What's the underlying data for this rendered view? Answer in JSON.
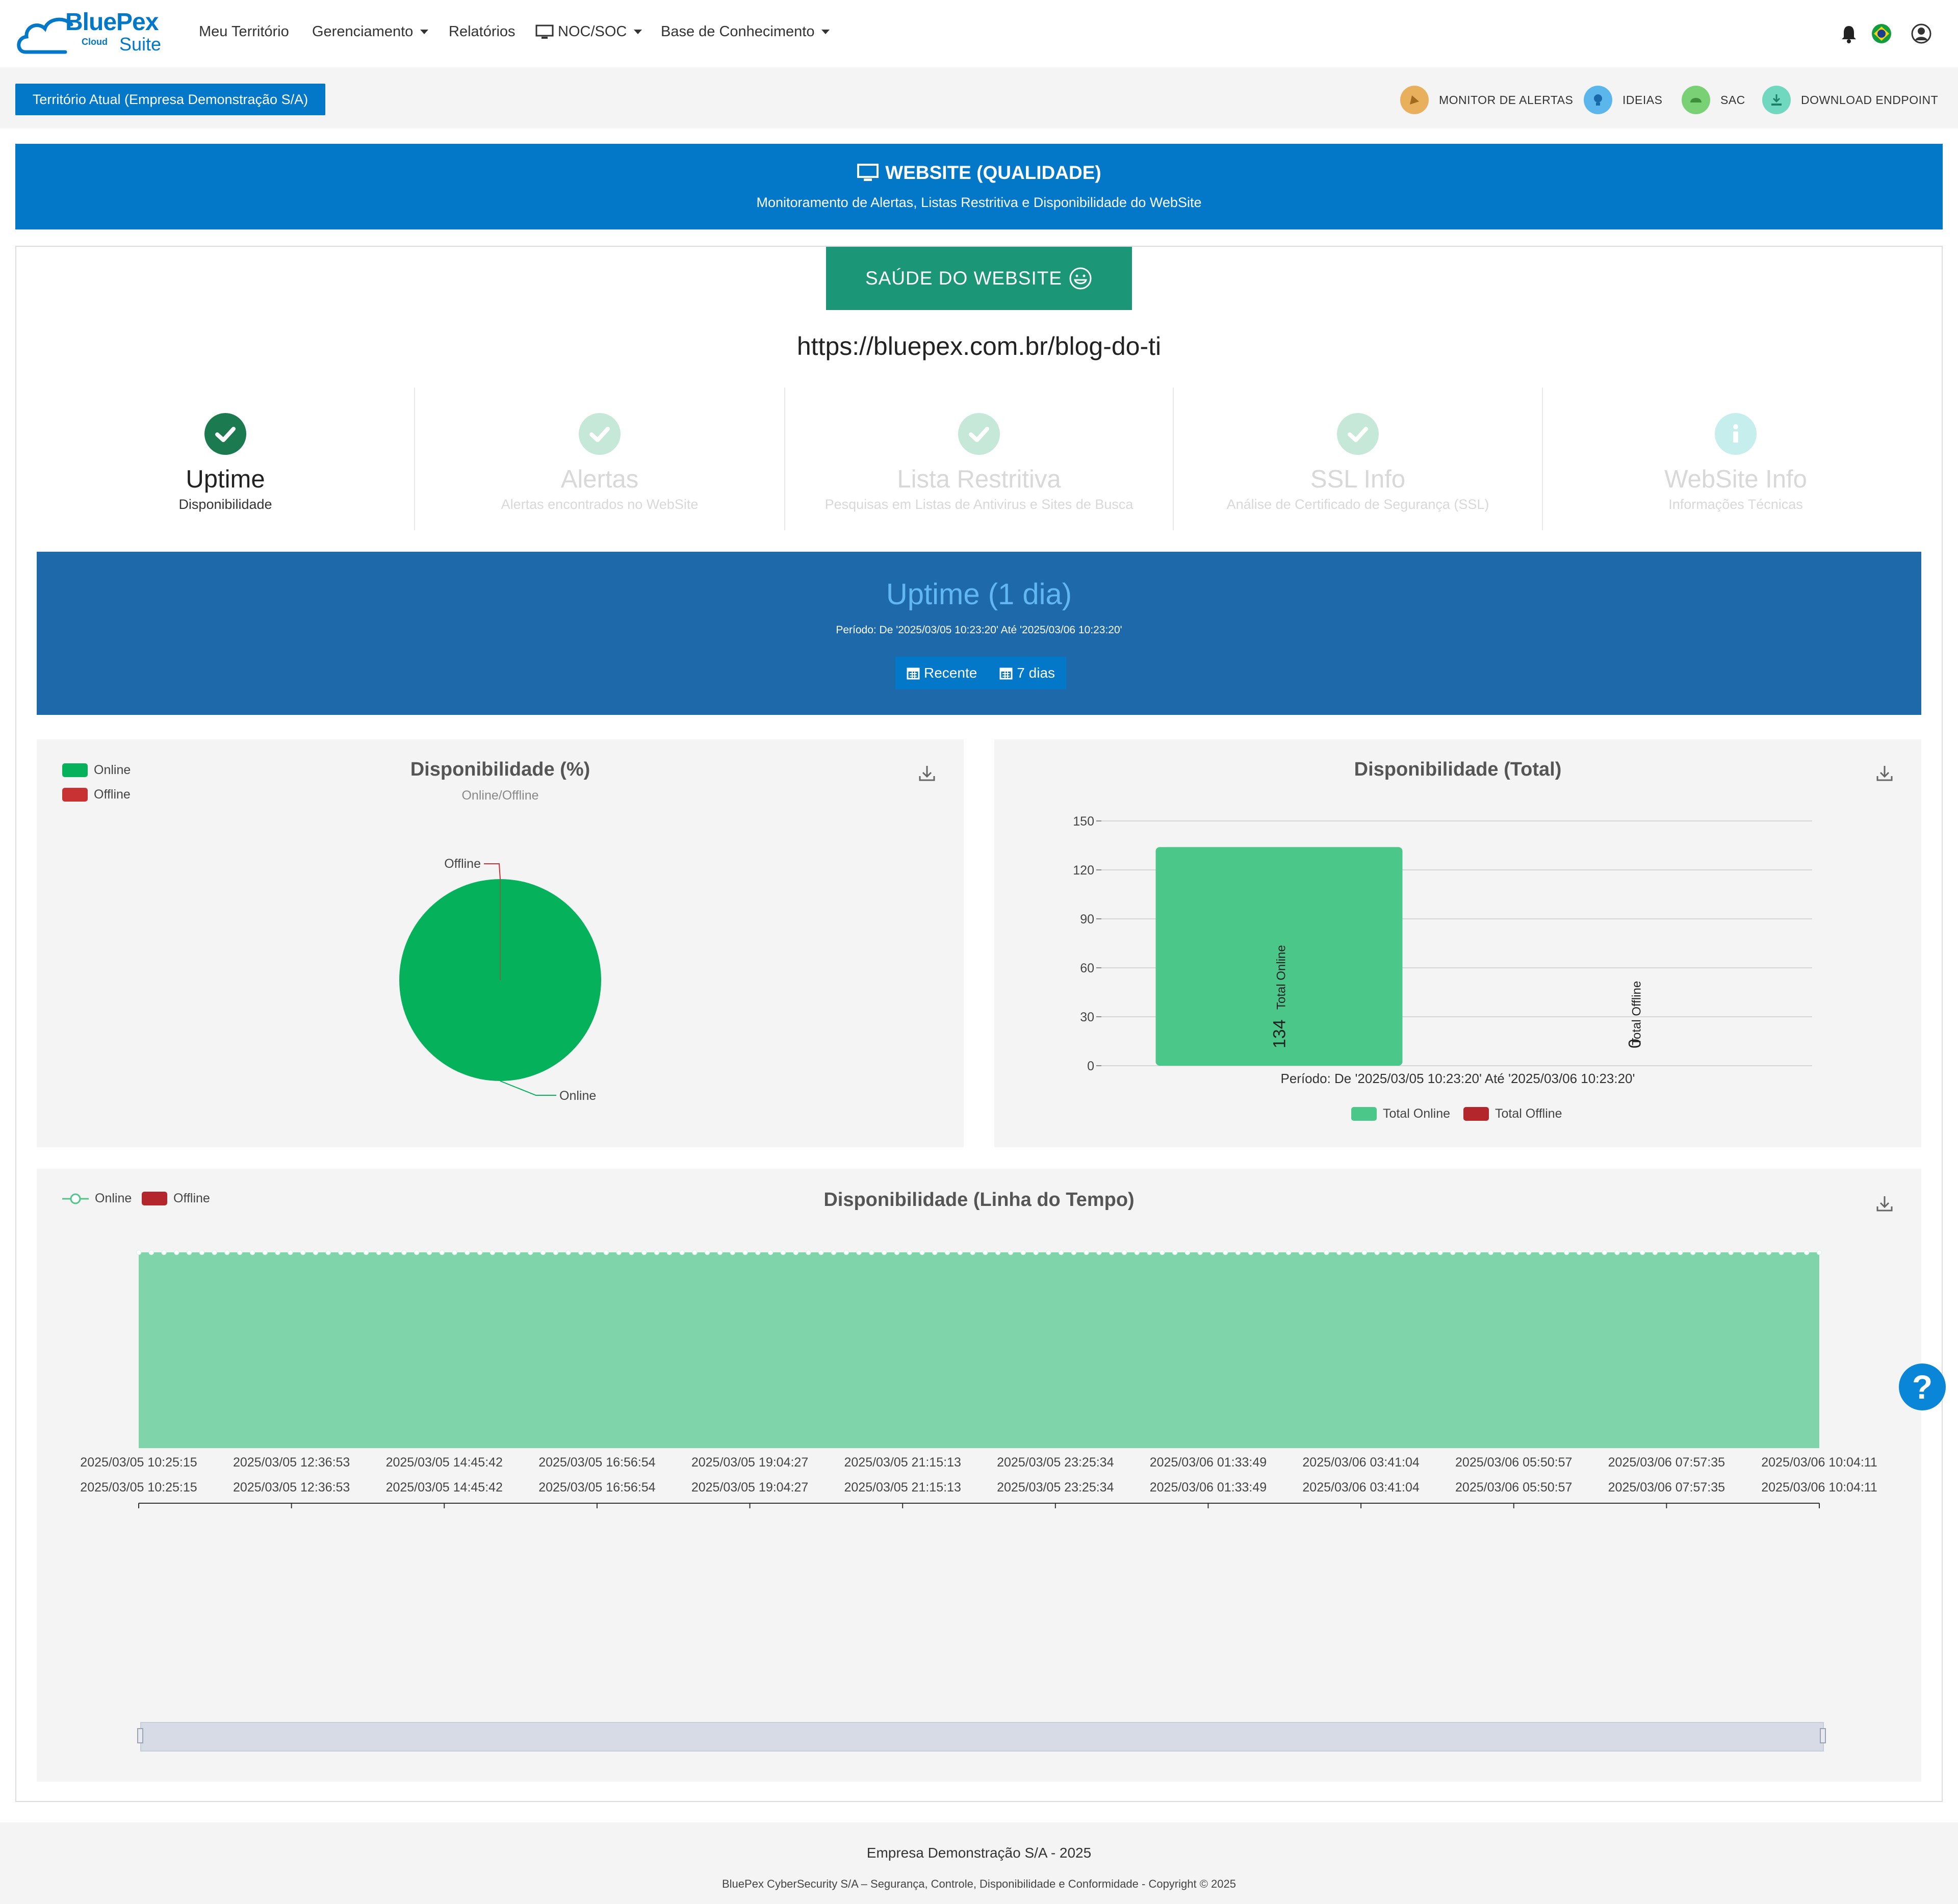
{
  "brand": {
    "name": "BluePex",
    "cloud": "Cloud",
    "suite": "Suite"
  },
  "nav": {
    "items": [
      {
        "label": "Meu Território"
      },
      {
        "label": "Gerenciamento"
      },
      {
        "label": "Relatórios"
      },
      {
        "label": "NOC/SOC"
      },
      {
        "label": "Base de Conhecimento"
      }
    ],
    "icons": [
      "bell-icon",
      "brazil-flag-icon",
      "user-icon"
    ]
  },
  "subbar": {
    "territory": "Território Atual (Empresa Demonstração S/A)",
    "links": [
      {
        "label": "MONITOR DE ALERTAS",
        "color": "#e8b05c"
      },
      {
        "label": "IDEIAS",
        "color": "#5bb6ec"
      },
      {
        "label": "SAC",
        "color": "#7ad175"
      },
      {
        "label": "DOWNLOAD ENDPOINT",
        "color": "#6fd8be"
      }
    ]
  },
  "header": {
    "title": "WEBSITE (QUALIDADE)",
    "subtitle": "Monitoramento de Alertas, Listas Restritiva e Disponibilidade do WebSite"
  },
  "health_button": "SAÚDE DO WEBSITE",
  "site_url": "https://bluepex.com.br/blog-do-ti",
  "steps": [
    {
      "title": "Uptime",
      "subtitle": "Disponibilidade",
      "active": true
    },
    {
      "title": "Alertas",
      "subtitle": "Alertas encontrados no WebSite",
      "active": false
    },
    {
      "title": "Lista Restritiva",
      "subtitle": "Pesquisas em Listas de Antivirus e Sites de Busca",
      "active": false
    },
    {
      "title": "SSL Info",
      "subtitle": "Análise de Certificado de Segurança (SSL)",
      "active": false
    },
    {
      "title": "WebSite Info",
      "subtitle": "Informações Técnicas",
      "active": false
    }
  ],
  "uptime": {
    "title": "Uptime (1 dia)",
    "period": "Período: De '2025/03/05 10:23:20' Até '2025/03/06 10:23:20'",
    "buttons": [
      "Recente",
      "7 dias"
    ]
  },
  "colors": {
    "online": "#05b25b",
    "offline": "#c83232",
    "online_bar": "#4bc78a",
    "offline_bar": "#b3262c",
    "area": "#80d4a9"
  },
  "chart_data": [
    {
      "type": "pie",
      "title": "Disponibilidade (%)",
      "subtitle": "Online/Offline",
      "legend": [
        "Online",
        "Offline"
      ],
      "legend_position": "top-left",
      "slices": [
        {
          "name": "Online",
          "value": 100
        },
        {
          "name": "Offline",
          "value": 0
        }
      ]
    },
    {
      "type": "bar",
      "title": "Disponibilidade (Total)",
      "categories": [
        "Total Online",
        "Total Offline"
      ],
      "values": [
        134,
        0
      ],
      "xlabel": "Período: De '2025/03/05 10:23:20' Até '2025/03/06 10:23:20'",
      "ylim": [
        0,
        150
      ],
      "yticks": [
        0,
        30,
        60,
        90,
        120,
        150
      ],
      "legend": [
        "Total Online",
        "Total Offline"
      ],
      "legend_position": "bottom",
      "grid": true
    },
    {
      "type": "area",
      "title": "Disponibilidade (Linha do Tempo)",
      "legend": [
        "Online",
        "Offline"
      ],
      "legend_position": "top-left",
      "value": 1,
      "point_count": 134,
      "x_ticks": [
        "2025/03/05 10:25:15",
        "2025/03/05 12:36:53",
        "2025/03/05 14:45:42",
        "2025/03/05 16:56:54",
        "2025/03/05 19:04:27",
        "2025/03/05 21:15:13",
        "2025/03/05 23:25:34",
        "2025/03/06 01:33:49",
        "2025/03/06 03:41:04",
        "2025/03/06 05:50:57",
        "2025/03/06 07:57:35",
        "2025/03/06 10:04:11"
      ]
    }
  ],
  "footer": {
    "company": "Empresa Demonstração S/A - 2025",
    "copyright": "BluePex CyberSecurity S/A – Segurança, Controle, Disponibilidade e Conformidade - Copyright © 2025"
  },
  "help": "?"
}
